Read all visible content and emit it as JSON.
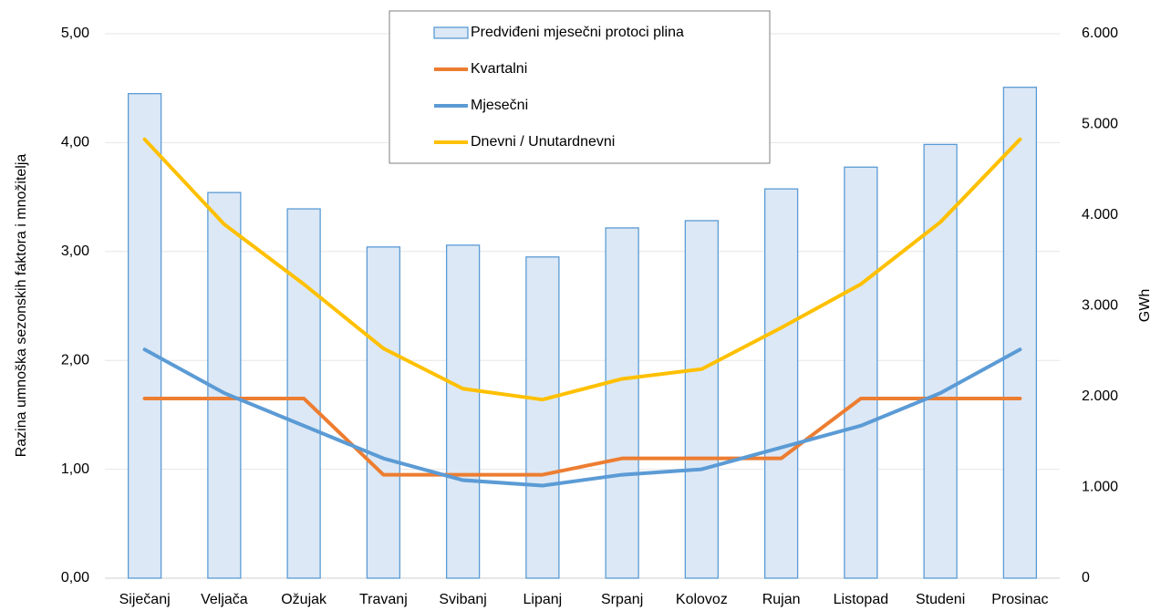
{
  "chart_data": {
    "type": "bar",
    "categories": [
      "Siječanj",
      "Veljača",
      "Ožujak",
      "Travanj",
      "Svibanj",
      "Lipanj",
      "Srpanj",
      "Kolovoz",
      "Rujan",
      "Listopad",
      "Studeni",
      "Prosinac"
    ],
    "series": [
      {
        "name": "Predviđeni mjesečni protoci plina",
        "type": "bar",
        "axis": "right",
        "color": "#dce8f5",
        "border_color": "#5b9bd5",
        "values": [
          5340,
          4250,
          4070,
          3650,
          3670,
          3540,
          3860,
          3940,
          4290,
          4530,
          4780,
          5410
        ]
      },
      {
        "name": "Kvartalni",
        "type": "line",
        "axis": "left",
        "color": "#ed7d31",
        "values": [
          1.65,
          1.65,
          1.65,
          0.95,
          0.95,
          0.95,
          1.1,
          1.1,
          1.1,
          1.65,
          1.65,
          1.65
        ]
      },
      {
        "name": "Mjesečni",
        "type": "line",
        "axis": "left",
        "color": "#5b9bd5",
        "values": [
          2.1,
          1.7,
          1.4,
          1.1,
          0.9,
          0.85,
          0.95,
          1.0,
          1.2,
          1.4,
          1.7,
          2.1
        ]
      },
      {
        "name": "Dnevni / Unutardnevni",
        "type": "line",
        "axis": "left",
        "color": "#ffc000",
        "values": [
          4.03,
          3.25,
          2.7,
          2.11,
          1.74,
          1.64,
          1.83,
          1.92,
          2.3,
          2.7,
          3.27,
          4.03
        ]
      }
    ],
    "ylabel": "Razina umnoška sezonskih faktora i množitelja",
    "y2label": "GWh",
    "ylim": [
      0,
      5
    ],
    "y2lim": [
      0,
      6000
    ],
    "yticks": [
      "0,00",
      "1,00",
      "2,00",
      "3,00",
      "4,00",
      "5,00"
    ],
    "y2ticks": [
      "0",
      "1.000",
      "2.000",
      "3.000",
      "4.000",
      "5.000",
      "6.000"
    ],
    "grid": true,
    "legend_position": "top-center"
  }
}
